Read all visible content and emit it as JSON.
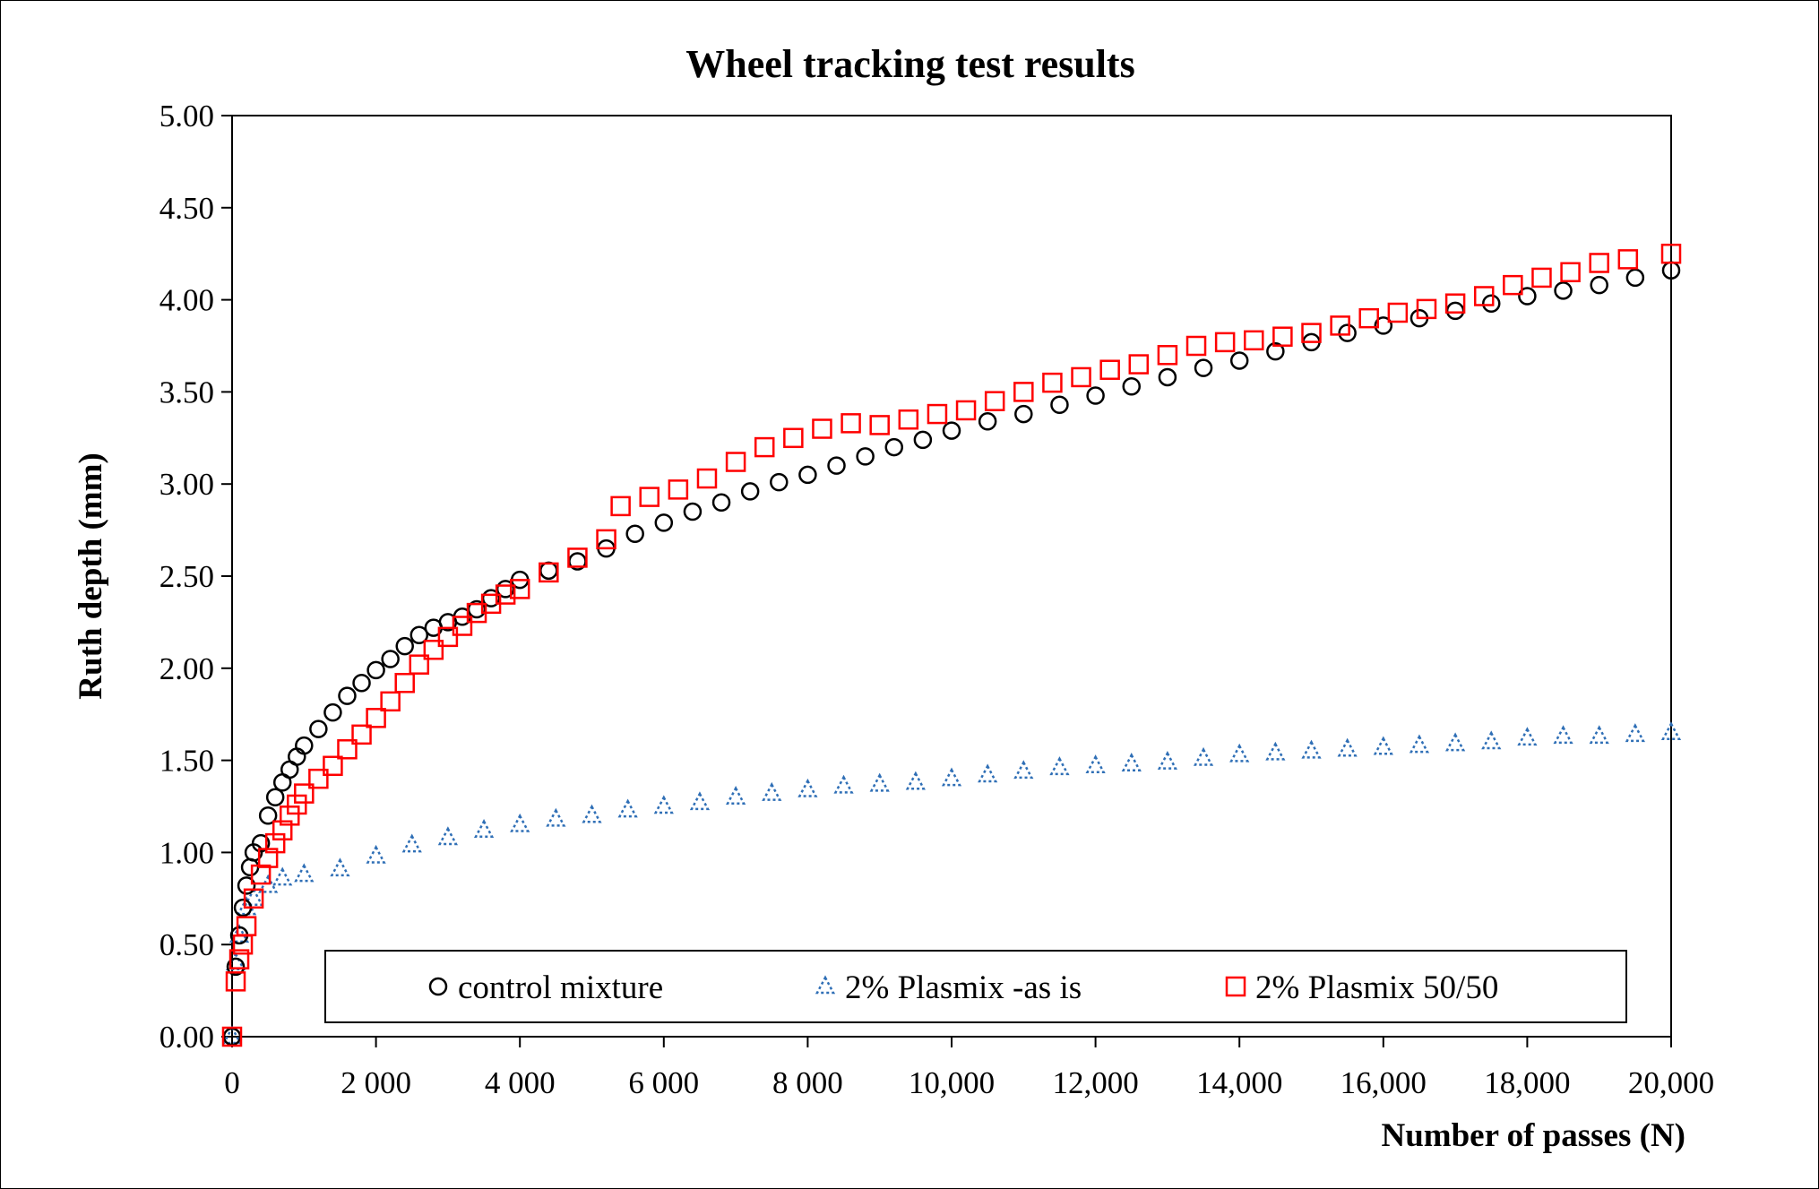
{
  "chart_data": {
    "type": "scatter",
    "title": "Wheel tracking test results",
    "xlabel": "Number of passes (N)",
    "ylabel": "Ruth depth (mm)",
    "xlim": [
      0,
      20000
    ],
    "ylim": [
      0,
      5
    ],
    "x_ticks": [
      0,
      2000,
      4000,
      6000,
      8000,
      10000,
      12000,
      14000,
      16000,
      18000,
      20000
    ],
    "x_tick_labels": [
      "0",
      "2 000",
      "4 000",
      "6 000",
      "8 000",
      "10,000",
      "12,000",
      "14,000",
      "16,000",
      "18,000",
      "20,000"
    ],
    "y_ticks": [
      0,
      0.5,
      1,
      1.5,
      2,
      2.5,
      3,
      3.5,
      4,
      4.5,
      5
    ],
    "y_tick_labels": [
      "0.00",
      "0.50",
      "1.00",
      "1.50",
      "2.00",
      "2.50",
      "3.00",
      "3.50",
      "4.00",
      "4.50",
      "5.00"
    ],
    "grid": false,
    "legend_position": "bottom-inside",
    "series": [
      {
        "name": "control mixture",
        "marker": "circle",
        "color": "#000000",
        "x": [
          0,
          50,
          100,
          150,
          200,
          250,
          300,
          400,
          500,
          600,
          700,
          800,
          900,
          1000,
          1200,
          1400,
          1600,
          1800,
          2000,
          2200,
          2400,
          2600,
          2800,
          3000,
          3200,
          3400,
          3600,
          3800,
          4000,
          4400,
          4800,
          5200,
          5600,
          6000,
          6400,
          6800,
          7200,
          7600,
          8000,
          8400,
          8800,
          9200,
          9600,
          10000,
          10500,
          11000,
          11500,
          12000,
          12500,
          13000,
          13500,
          14000,
          14500,
          15000,
          15500,
          16000,
          16500,
          17000,
          17500,
          18000,
          18500,
          19000,
          19500,
          20000
        ],
        "y": [
          0.0,
          0.38,
          0.55,
          0.7,
          0.82,
          0.92,
          1.0,
          1.05,
          1.2,
          1.3,
          1.38,
          1.45,
          1.52,
          1.58,
          1.67,
          1.76,
          1.85,
          1.92,
          1.99,
          2.05,
          2.12,
          2.18,
          2.22,
          2.25,
          2.28,
          2.32,
          2.38,
          2.43,
          2.48,
          2.53,
          2.58,
          2.65,
          2.73,
          2.79,
          2.85,
          2.9,
          2.96,
          3.01,
          3.05,
          3.1,
          3.15,
          3.2,
          3.24,
          3.29,
          3.34,
          3.38,
          3.43,
          3.48,
          3.53,
          3.58,
          3.63,
          3.67,
          3.72,
          3.77,
          3.82,
          3.86,
          3.9,
          3.94,
          3.98,
          4.02,
          4.05,
          4.08,
          4.12,
          4.16
        ]
      },
      {
        "name": "2% Plasmix -as is",
        "marker": "triangle",
        "color": "#2f6fb6",
        "x": [
          0,
          50,
          100,
          200,
          300,
          500,
          700,
          1000,
          1500,
          2000,
          2500,
          3000,
          3500,
          4000,
          4500,
          5000,
          5500,
          6000,
          6500,
          7000,
          7500,
          8000,
          8500,
          9000,
          9500,
          10000,
          10500,
          11000,
          11500,
          12000,
          12500,
          13000,
          13500,
          14000,
          14500,
          15000,
          15500,
          16000,
          16500,
          17000,
          17500,
          18000,
          18500,
          19000,
          19500,
          20000
        ],
        "y": [
          0.0,
          0.4,
          0.55,
          0.7,
          0.75,
          0.82,
          0.86,
          0.88,
          0.91,
          0.98,
          1.04,
          1.08,
          1.12,
          1.15,
          1.18,
          1.2,
          1.23,
          1.25,
          1.27,
          1.3,
          1.32,
          1.34,
          1.36,
          1.37,
          1.38,
          1.4,
          1.42,
          1.44,
          1.46,
          1.47,
          1.48,
          1.49,
          1.51,
          1.53,
          1.54,
          1.55,
          1.56,
          1.57,
          1.58,
          1.59,
          1.6,
          1.62,
          1.63,
          1.63,
          1.64,
          1.65
        ]
      },
      {
        "name": "2% Plasmix 50/50",
        "marker": "square",
        "color": "#ff0000",
        "x": [
          0,
          50,
          100,
          150,
          200,
          300,
          400,
          500,
          600,
          700,
          800,
          900,
          1000,
          1200,
          1400,
          1600,
          1800,
          2000,
          2200,
          2400,
          2600,
          2800,
          3000,
          3200,
          3400,
          3600,
          3800,
          4000,
          4400,
          4800,
          5200,
          5400,
          5800,
          6200,
          6600,
          7000,
          7400,
          7800,
          8200,
          8600,
          9000,
          9400,
          9800,
          10200,
          10600,
          11000,
          11400,
          11800,
          12200,
          12600,
          13000,
          13400,
          13800,
          14200,
          14600,
          15000,
          15400,
          15800,
          16200,
          16600,
          17000,
          17400,
          17800,
          18200,
          18600,
          19000,
          19400,
          20000
        ],
        "y": [
          0.0,
          0.3,
          0.42,
          0.5,
          0.6,
          0.75,
          0.88,
          0.97,
          1.05,
          1.12,
          1.2,
          1.26,
          1.32,
          1.4,
          1.47,
          1.56,
          1.64,
          1.73,
          1.82,
          1.92,
          2.02,
          2.1,
          2.17,
          2.23,
          2.3,
          2.35,
          2.4,
          2.43,
          2.52,
          2.6,
          2.7,
          2.88,
          2.93,
          2.97,
          3.03,
          3.12,
          3.2,
          3.25,
          3.3,
          3.33,
          3.32,
          3.35,
          3.38,
          3.4,
          3.45,
          3.5,
          3.55,
          3.58,
          3.62,
          3.65,
          3.7,
          3.75,
          3.77,
          3.78,
          3.8,
          3.82,
          3.86,
          3.9,
          3.93,
          3.95,
          3.98,
          4.02,
          4.08,
          4.12,
          4.15,
          4.2,
          4.22,
          4.25
        ]
      }
    ]
  }
}
